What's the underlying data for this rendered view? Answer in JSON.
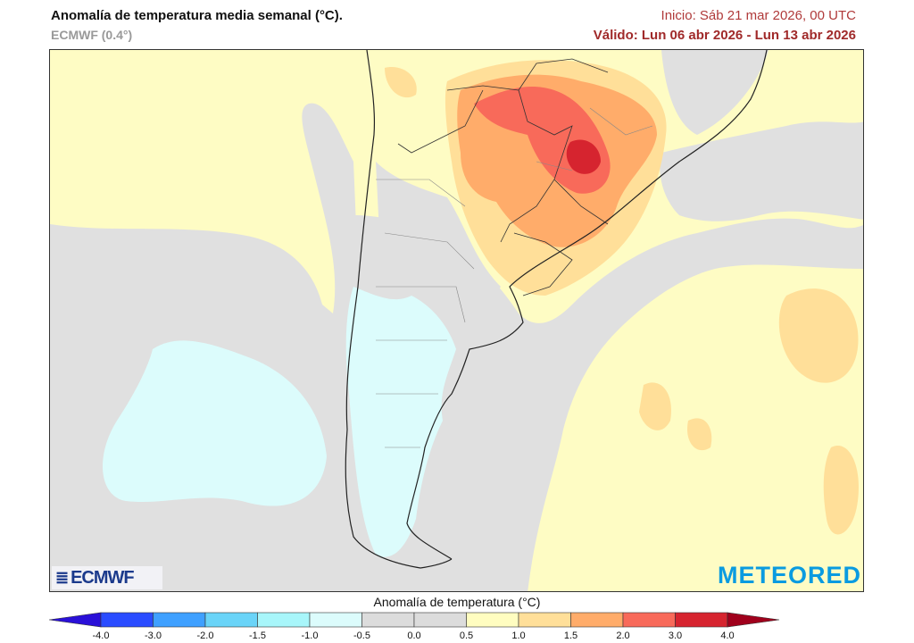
{
  "header": {
    "title": "Anomalía de temperatura media semanal (°C).",
    "model": "ECMWF (0.4°)",
    "init": "Inicio: Sáb 21 mar 2026, 00 UTC",
    "valid": "Válido: Lun 06 abr 2026 - Lun 13 abr 2026"
  },
  "logos": {
    "ecmwf": "ECMWF",
    "meteored": "METEORED"
  },
  "colorbar": {
    "title": "Anomalía de temperatura (°C)",
    "ticks": [
      "-4.0",
      "-3.0",
      "-2.0",
      "-1.5",
      "-1.0",
      "-0.5",
      "0.0",
      "0.5",
      "1.0",
      "1.5",
      "2.0",
      "3.0",
      "4.0"
    ],
    "under_color": "#2a10d8",
    "over_color": "#a0001c",
    "bin_colors": [
      "#2a4cff",
      "#3fa0ff",
      "#6ad4f8",
      "#a8f6fa",
      "#dcfcfc",
      "#dcdcdc",
      "#dcdcdc",
      "#fffdc0",
      "#ffdf99",
      "#ffac6a",
      "#f86a5a",
      "#d6242f"
    ]
  },
  "map": {
    "colors": {
      "neutral": "#e0e0e0",
      "warm_light": "#fefcc4",
      "warm": "#ffdf99",
      "warm_mid": "#ffac6a",
      "warm_high": "#f86a5a",
      "warm_max": "#d6242f",
      "cool": "#dcfcfc"
    }
  }
}
